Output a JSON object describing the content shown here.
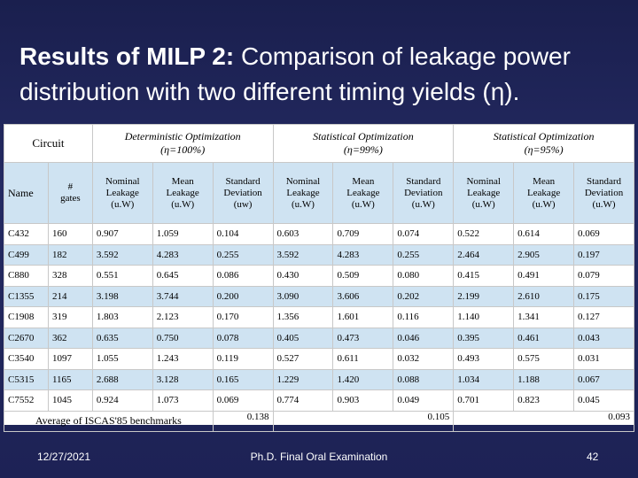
{
  "title": {
    "bold": "Results of MILP 2:",
    "rest": " Comparison of leakage power distribution with two different timing yields (η)."
  },
  "table": {
    "circuit_label": "Circuit",
    "groups": [
      {
        "line1": "Deterministic Optimization",
        "line2": "(η=100%)"
      },
      {
        "line1": "Statistical Optimization",
        "line2": "(η=99%)"
      },
      {
        "line1": "Statistical Optimization",
        "line2": "(η=95%)"
      }
    ],
    "col_name": "Name",
    "col_gates": [
      "#",
      "gates"
    ],
    "col_headers": [
      [
        "Nominal",
        "Leakage",
        "(u.W)"
      ],
      [
        "Mean",
        "Leakage",
        "(u.W)"
      ],
      [
        "Standard",
        "Deviation",
        "(uw)"
      ],
      [
        "Nominal",
        "Leakage",
        "(u.W)"
      ],
      [
        "Mean",
        "Leakage",
        "(u.W)"
      ],
      [
        "Standard",
        "Deviation",
        "(u.W)"
      ],
      [
        "Nominal",
        "Leakage",
        "(u.W)"
      ],
      [
        "Mean",
        "Leakage",
        "(u.W)"
      ],
      [
        "Standard",
        "Deviation",
        "(u.W)"
      ]
    ],
    "rows": [
      [
        "C432",
        "160",
        "0.907",
        "1.059",
        "0.104",
        "0.603",
        "0.709",
        "0.074",
        "0.522",
        "0.614",
        "0.069"
      ],
      [
        "C499",
        "182",
        "3.592",
        "4.283",
        "0.255",
        "3.592",
        "4.283",
        "0.255",
        "2.464",
        "2.905",
        "0.197"
      ],
      [
        "C880",
        "328",
        "0.551",
        "0.645",
        "0.086",
        "0.430",
        "0.509",
        "0.080",
        "0.415",
        "0.491",
        "0.079"
      ],
      [
        "C1355",
        "214",
        "3.198",
        "3.744",
        "0.200",
        "3.090",
        "3.606",
        "0.202",
        "2.199",
        "2.610",
        "0.175"
      ],
      [
        "C1908",
        "319",
        "1.803",
        "2.123",
        "0.170",
        "1.356",
        "1.601",
        "0.116",
        "1.140",
        "1.341",
        "0.127"
      ],
      [
        "C2670",
        "362",
        "0.635",
        "0.750",
        "0.078",
        "0.405",
        "0.473",
        "0.046",
        "0.395",
        "0.461",
        "0.043"
      ],
      [
        "C3540",
        "1097",
        "1.055",
        "1.243",
        "0.119",
        "0.527",
        "0.611",
        "0.032",
        "0.493",
        "0.575",
        "0.031"
      ],
      [
        "C5315",
        "1165",
        "2.688",
        "3.128",
        "0.165",
        "1.229",
        "1.420",
        "0.088",
        "1.034",
        "1.188",
        "0.067"
      ],
      [
        "C7552",
        "1045",
        "0.924",
        "1.073",
        "0.069",
        "0.774",
        "0.903",
        "0.049",
        "0.701",
        "0.823",
        "0.045"
      ]
    ],
    "average": {
      "label": "Average of ISCAS'85 benchmarks",
      "det": "0.138",
      "stat99": "0.105",
      "stat95": "0.093"
    }
  },
  "footer": {
    "date": "12/27/2021",
    "center": "Ph.D. Final Oral Examination",
    "page": "42"
  },
  "colors": {
    "background": "#1f2458",
    "band": "#cfe3f2"
  }
}
